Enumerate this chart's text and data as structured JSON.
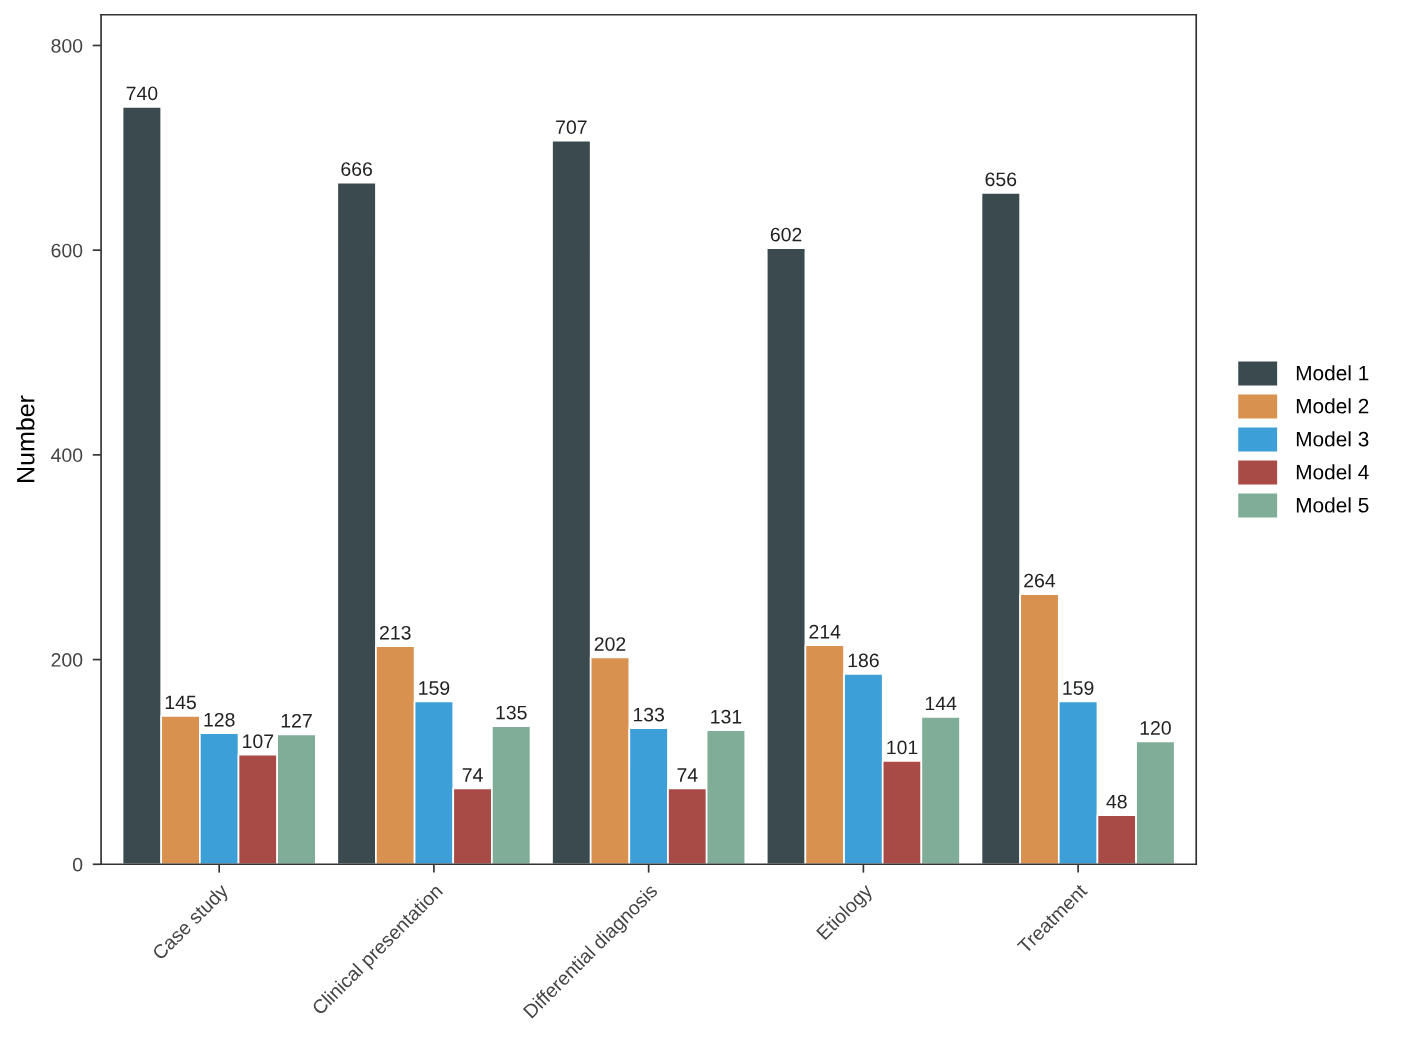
{
  "chart_data": {
    "type": "bar",
    "ylabel": "Number",
    "categories": [
      "Case study",
      "Clinical presentation",
      "Differential diagnosis",
      "Etiology",
      "Treatment"
    ],
    "series": [
      {
        "name": "Model 1",
        "color": "#3a4a4f",
        "values": [
          740,
          666,
          707,
          602,
          656
        ]
      },
      {
        "name": "Model 2",
        "color": "#d8914f",
        "values": [
          145,
          213,
          202,
          214,
          264
        ]
      },
      {
        "name": "Model 3",
        "color": "#3d9fd8",
        "values": [
          128,
          159,
          133,
          186,
          159
        ]
      },
      {
        "name": "Model 4",
        "color": "#a84a46",
        "values": [
          107,
          74,
          74,
          101,
          48
        ]
      },
      {
        "name": "Model 5",
        "color": "#80ad97",
        "values": [
          127,
          135,
          131,
          144,
          120
        ]
      }
    ],
    "ylim": [
      0,
      830
    ],
    "yticks": [
      0,
      200,
      400,
      600,
      800
    ],
    "grid": false,
    "legend": "right",
    "data_labels": true
  }
}
